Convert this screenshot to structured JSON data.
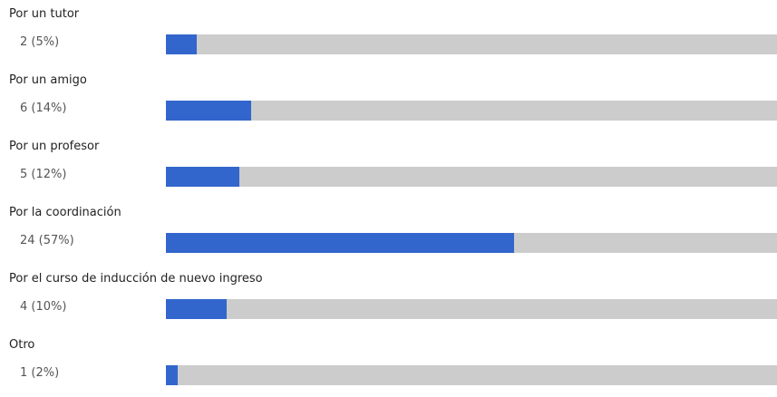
{
  "chart_data": {
    "type": "bar",
    "orientation": "horizontal",
    "categories": [
      "Por un tutor",
      "Por un amigo",
      "Por un profesor",
      "Por la coordinación",
      "Por el curso de inducción de nuevo ingreso",
      "Otro"
    ],
    "values": [
      2,
      6,
      5,
      24,
      4,
      1
    ],
    "percent_labels": [
      "2 (5%)",
      "6 (14%)",
      "5 (12%)",
      "24 (57%)",
      "4 (10%)",
      "1 (2%)"
    ],
    "percent": [
      5,
      14,
      12,
      57,
      10,
      2
    ],
    "xlim": [
      0,
      100
    ],
    "bar_color": "#3366cc",
    "track_color": "#cccccc",
    "grid": false
  }
}
